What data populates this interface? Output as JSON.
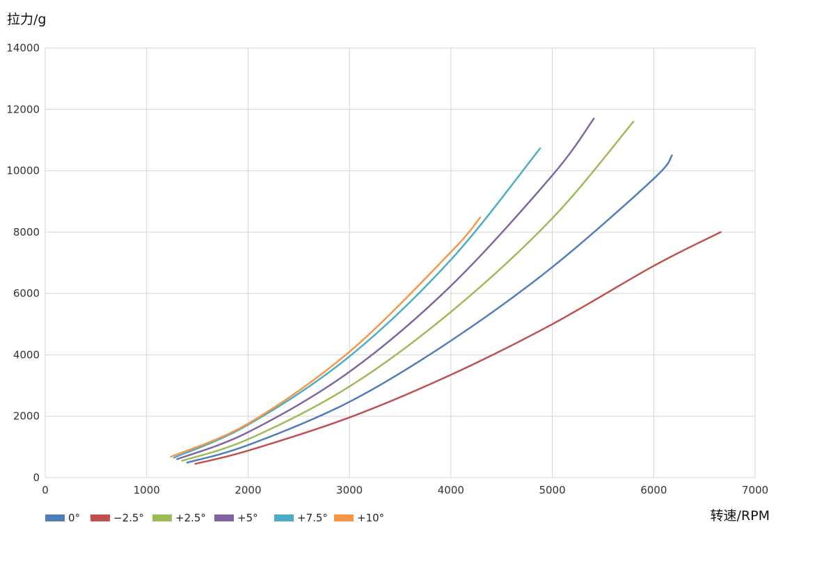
{
  "chart_data": {
    "type": "line",
    "title": "",
    "xlabel": "转速/RPM",
    "ylabel": "拉力/g",
    "xlim": [
      0,
      7000
    ],
    "ylim": [
      0,
      14000
    ],
    "xticks": [
      0,
      1000,
      2000,
      3000,
      4000,
      5000,
      6000,
      7000
    ],
    "yticks": [
      0,
      2000,
      4000,
      6000,
      8000,
      10000,
      12000,
      14000
    ],
    "grid": true,
    "legend_position": "bottom-left",
    "series": [
      {
        "name": "0°",
        "color": "#4F7DB9",
        "points": [
          [
            1400,
            490
          ],
          [
            2000,
            1060
          ],
          [
            3000,
            2470
          ],
          [
            4000,
            4460
          ],
          [
            5000,
            6860
          ],
          [
            6000,
            9740
          ],
          [
            6180,
            10500
          ]
        ]
      },
      {
        "name": "−2.5°",
        "color": "#C0504D",
        "points": [
          [
            1480,
            450
          ],
          [
            2000,
            880
          ],
          [
            3000,
            1960
          ],
          [
            4000,
            3350
          ],
          [
            5000,
            5000
          ],
          [
            6000,
            6900
          ],
          [
            6660,
            8000
          ]
        ]
      },
      {
        "name": "+2.5°",
        "color": "#9BBB59",
        "points": [
          [
            1350,
            550
          ],
          [
            2000,
            1250
          ],
          [
            3000,
            2970
          ],
          [
            4000,
            5400
          ],
          [
            5000,
            8450
          ],
          [
            5800,
            11600
          ]
        ]
      },
      {
        "name": "+5°",
        "color": "#8064A2",
        "points": [
          [
            1300,
            600
          ],
          [
            2000,
            1480
          ],
          [
            3000,
            3450
          ],
          [
            4000,
            6250
          ],
          [
            5000,
            9850
          ],
          [
            5410,
            11700
          ]
        ]
      },
      {
        "name": "+7.5°",
        "color": "#4BACC6",
        "points": [
          [
            1270,
            650
          ],
          [
            2000,
            1720
          ],
          [
            3000,
            3950
          ],
          [
            4000,
            7100
          ],
          [
            4880,
            10730
          ]
        ]
      },
      {
        "name": "+10°",
        "color": "#F79646",
        "points": [
          [
            1240,
            680
          ],
          [
            2000,
            1760
          ],
          [
            3000,
            4100
          ],
          [
            4000,
            7350
          ],
          [
            4290,
            8480
          ]
        ]
      }
    ]
  }
}
